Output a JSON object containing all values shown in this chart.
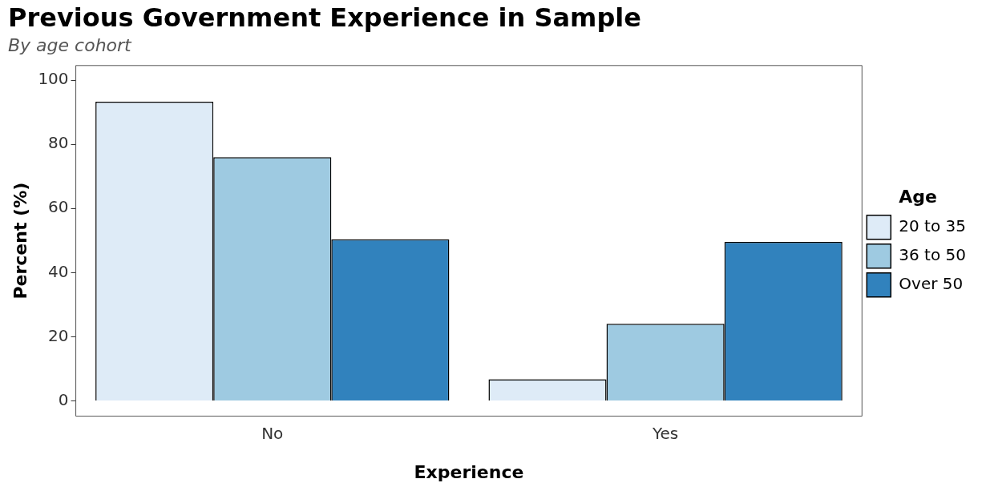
{
  "chart_data": {
    "type": "bar",
    "title": "Previous Government Experience in Sample",
    "subtitle": "By age cohort",
    "xlabel": "Experience",
    "ylabel": "Percent (%)",
    "legend_title": "Age",
    "legend": "right",
    "categories": [
      "No",
      "Yes"
    ],
    "series": [
      {
        "name": "20 to 35",
        "color": "#deebf7",
        "values": [
          93.3,
          6.7
        ]
      },
      {
        "name": "36 to 50",
        "color": "#9ecae1",
        "values": [
          76,
          24
        ]
      },
      {
        "name": "Over 50",
        "color": "#3182bd",
        "values": [
          50.4,
          49.6
        ]
      }
    ],
    "ylim": [
      -4.8,
      104.6
    ],
    "yticks": [
      0,
      20,
      40,
      60,
      80,
      100
    ]
  }
}
